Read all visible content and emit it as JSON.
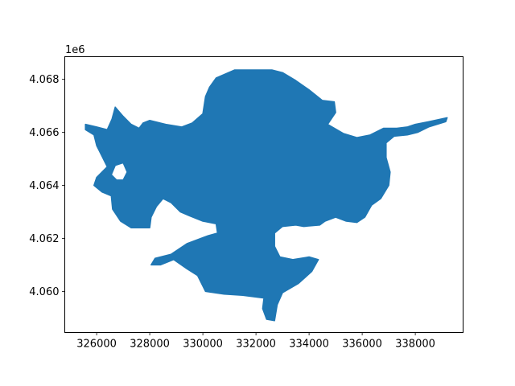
{
  "chart_data": {
    "type": "map",
    "title": "",
    "xlabel": "",
    "ylabel": "",
    "y_offset_label": "1e6",
    "xlim": [
      324800,
      339800
    ],
    "ylim": [
      4058450,
      4068850
    ],
    "x_ticks": [
      326000,
      328000,
      330000,
      332000,
      334000,
      336000,
      338000
    ],
    "x_tick_labels": [
      "326000",
      "328000",
      "330000",
      "332000",
      "334000",
      "336000",
      "338000"
    ],
    "y_ticks": [
      4060000,
      4062000,
      4064000,
      4066000,
      4068000
    ],
    "y_tick_labels": [
      "4.060",
      "4.062",
      "4.064",
      "4.066",
      "4.068"
    ],
    "grid": false,
    "fill_color": "#1f77b4",
    "polygon": [
      [
        325580,
        4066300
      ],
      [
        326000,
        4066200
      ],
      [
        326400,
        4066100
      ],
      [
        326580,
        4066500
      ],
      [
        326700,
        4066950
      ],
      [
        327000,
        4066600
      ],
      [
        327300,
        4066300
      ],
      [
        327600,
        4066150
      ],
      [
        327750,
        4066350
      ],
      [
        328000,
        4066450
      ],
      [
        328600,
        4066300
      ],
      [
        329200,
        4066200
      ],
      [
        329600,
        4066350
      ],
      [
        330000,
        4066700
      ],
      [
        330100,
        4067350
      ],
      [
        330250,
        4067700
      ],
      [
        330500,
        4068050
      ],
      [
        331200,
        4068350
      ],
      [
        332000,
        4068350
      ],
      [
        332600,
        4068350
      ],
      [
        333000,
        4068250
      ],
      [
        333500,
        4067950
      ],
      [
        334000,
        4067600
      ],
      [
        334500,
        4067200
      ],
      [
        334950,
        4067150
      ],
      [
        335000,
        4066750
      ],
      [
        334700,
        4066300
      ],
      [
        335300,
        4065950
      ],
      [
        335800,
        4065800
      ],
      [
        336300,
        4065900
      ],
      [
        336800,
        4066150
      ],
      [
        337300,
        4066150
      ],
      [
        337700,
        4066200
      ],
      [
        338000,
        4066300
      ],
      [
        338500,
        4066400
      ],
      [
        339200,
        4066550
      ],
      [
        339150,
        4066400
      ],
      [
        338500,
        4066200
      ],
      [
        338100,
        4066000
      ],
      [
        337700,
        4065900
      ],
      [
        337200,
        4065850
      ],
      [
        336900,
        4065600
      ],
      [
        336900,
        4065050
      ],
      [
        337050,
        4064500
      ],
      [
        337000,
        4064000
      ],
      [
        336700,
        4063500
      ],
      [
        336350,
        4063250
      ],
      [
        336100,
        4062800
      ],
      [
        335800,
        4062600
      ],
      [
        335400,
        4062650
      ],
      [
        335000,
        4062800
      ],
      [
        334600,
        4062650
      ],
      [
        334400,
        4062500
      ],
      [
        333800,
        4062450
      ],
      [
        333500,
        4062500
      ],
      [
        333000,
        4062450
      ],
      [
        332700,
        4062200
      ],
      [
        332700,
        4061700
      ],
      [
        332900,
        4061300
      ],
      [
        333400,
        4061200
      ],
      [
        334000,
        4061300
      ],
      [
        334350,
        4061200
      ],
      [
        334100,
        4060750
      ],
      [
        333600,
        4060300
      ],
      [
        333000,
        4059950
      ],
      [
        332800,
        4059500
      ],
      [
        332700,
        4058900
      ],
      [
        332400,
        4058950
      ],
      [
        332250,
        4059350
      ],
      [
        332300,
        4059750
      ],
      [
        331500,
        4059850
      ],
      [
        330800,
        4059900
      ],
      [
        330100,
        4060000
      ],
      [
        329800,
        4060600
      ],
      [
        329400,
        4060850
      ],
      [
        328900,
        4061200
      ],
      [
        328400,
        4061000
      ],
      [
        328050,
        4061000
      ],
      [
        328200,
        4061250
      ],
      [
        328800,
        4061400
      ],
      [
        329400,
        4061800
      ],
      [
        330200,
        4062100
      ],
      [
        330550,
        4062200
      ],
      [
        330500,
        4062550
      ],
      [
        330000,
        4062650
      ],
      [
        329500,
        4062850
      ],
      [
        329150,
        4063000
      ],
      [
        328800,
        4063350
      ],
      [
        328500,
        4063500
      ],
      [
        328250,
        4063200
      ],
      [
        328050,
        4062800
      ],
      [
        328000,
        4062400
      ],
      [
        327700,
        4062400
      ],
      [
        327300,
        4062400
      ],
      [
        326900,
        4062650
      ],
      [
        326600,
        4063100
      ],
      [
        326550,
        4063600
      ],
      [
        326200,
        4063750
      ],
      [
        325900,
        4064000
      ],
      [
        326000,
        4064300
      ],
      [
        326400,
        4064700
      ],
      [
        326200,
        4065100
      ],
      [
        326000,
        4065500
      ],
      [
        325900,
        4065900
      ],
      [
        325580,
        4066100
      ]
    ],
    "holes": [
      [
        [
          326700,
          4064750
        ],
        [
          327000,
          4064850
        ],
        [
          327150,
          4064500
        ],
        [
          327000,
          4064200
        ],
        [
          326750,
          4064200
        ],
        [
          326550,
          4064400
        ]
      ]
    ]
  }
}
